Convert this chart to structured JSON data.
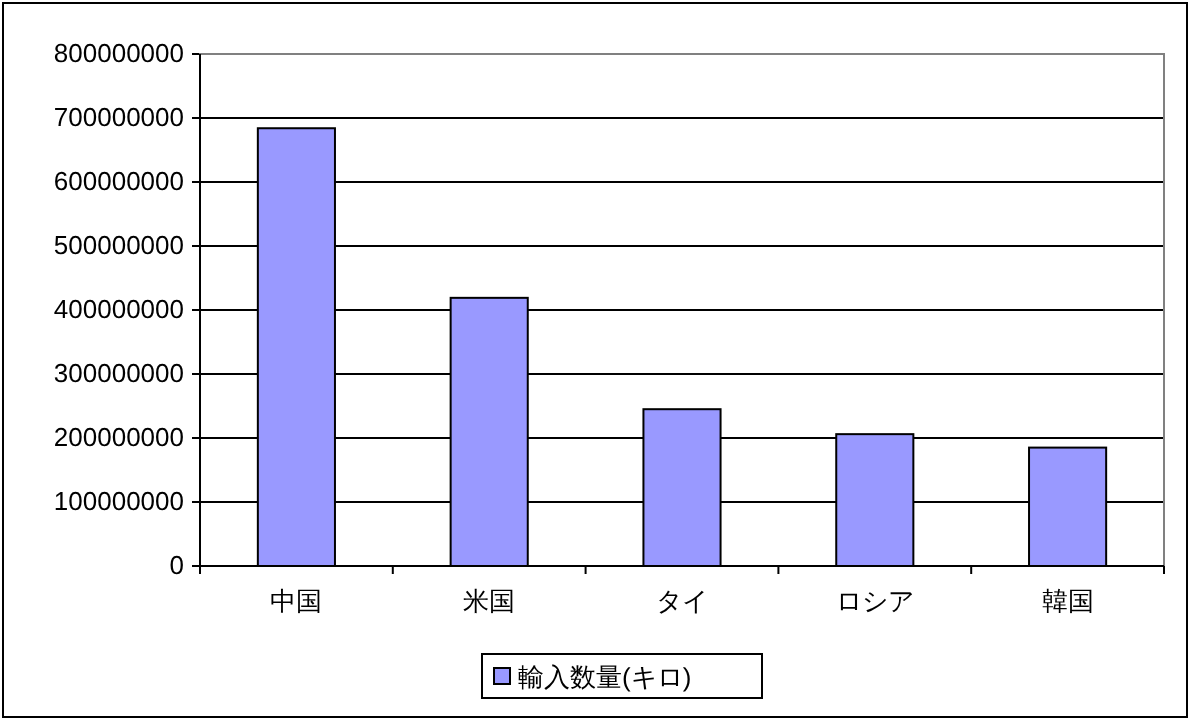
{
  "chart_data": {
    "type": "bar",
    "categories": [
      "中国",
      "米国",
      "タイ",
      "ロシア",
      "韓国"
    ],
    "series": [
      {
        "name": "輸入数量(キロ)",
        "color": "#9999ff",
        "values": [
          684000000,
          419000000,
          245000000,
          206000000,
          185000000
        ]
      }
    ],
    "ylim": [
      0,
      800000000
    ],
    "yticks": [
      0,
      100000000,
      200000000,
      300000000,
      400000000,
      500000000,
      600000000,
      700000000,
      800000000
    ],
    "grid": "y",
    "legend": "bottom"
  }
}
